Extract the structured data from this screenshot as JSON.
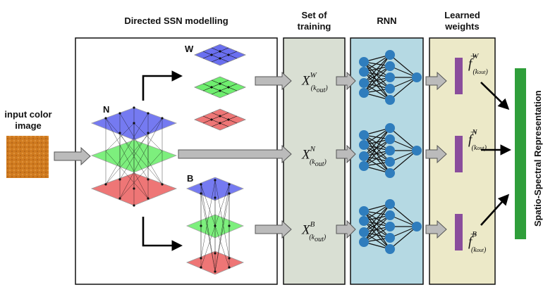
{
  "headers": {
    "modelling": "Directed SSN modelling",
    "training": "Set of\ntraining",
    "rnn": "RNN",
    "weights": "Learned\nweights"
  },
  "input": {
    "label_line1": "input color",
    "label_line2": "image",
    "image_color": "#d07a1e"
  },
  "graph_labels": {
    "n": "N",
    "w": "W",
    "b": "B"
  },
  "training_set": [
    {
      "base": "X",
      "sup": "W",
      "sub": "(k",
      "subsub": "out",
      "close": ")"
    },
    {
      "base": "X",
      "sup": "N",
      "sub": "(k",
      "subsub": "out",
      "close": ")"
    },
    {
      "base": "X",
      "sup": "B",
      "sub": "(k",
      "subsub": "out",
      "close": ")"
    }
  ],
  "learned_weights": [
    {
      "arrow": "→",
      "base": "f",
      "sup": "W",
      "sub": "(k",
      "subsub": "out",
      "close": ")"
    },
    {
      "arrow": "→",
      "base": "f",
      "sup": "N",
      "sub": "(k",
      "subsub": "out",
      "close": ")"
    },
    {
      "arrow": "→",
      "base": "f",
      "sup": "B",
      "sub": "(k",
      "subsub": "out",
      "close": ")"
    }
  ],
  "output_label": "Spatio-Spectral Representation",
  "colors": {
    "blue_layer": "#6a6ff0",
    "green_layer": "#6fee6f",
    "red_layer": "#ee7676",
    "training_bg": "#d9dfd3",
    "rnn_bg": "#b5d9e3",
    "weights_bg": "#ece9c8",
    "node": "#2f7dbd",
    "weight_bar": "#8a4d9c",
    "output_bar": "#2f9e3a"
  }
}
